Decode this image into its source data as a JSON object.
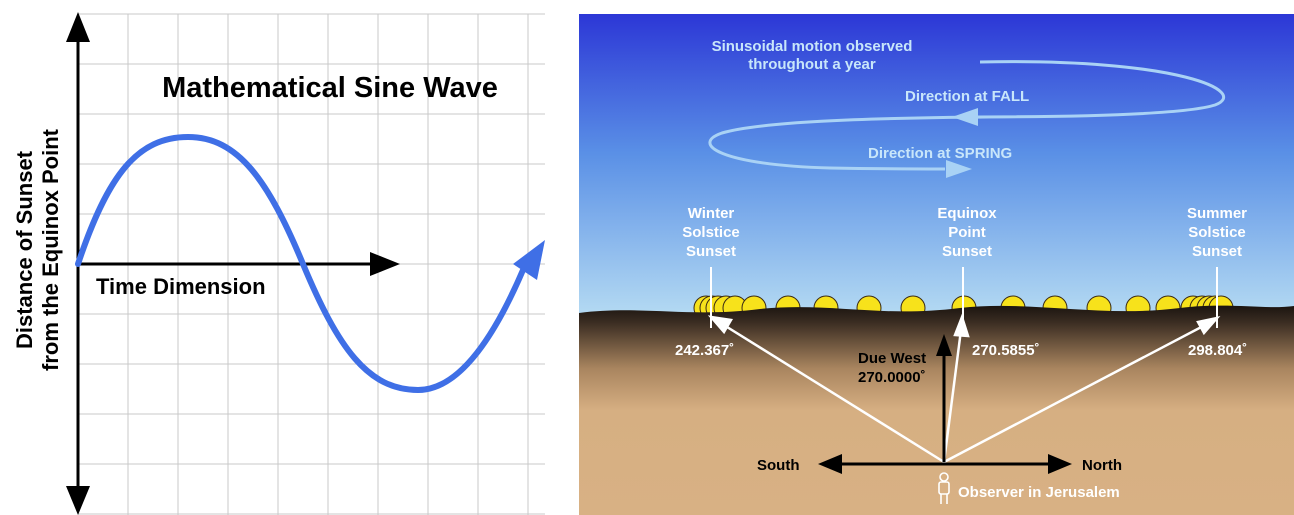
{
  "left_panel": {
    "title": "Mathematical Sine Wave",
    "x_axis_label": "Time Dimension",
    "y_axis_label_line1": "Distance of Sunset",
    "y_axis_label_line2": "from the Equinox Point",
    "wave_color": "#3f6fe6"
  },
  "right_panel": {
    "motion_caption_line1": "Sinusoidal motion observed",
    "motion_caption_line2": "throughout a year",
    "fall_label": "Direction at FALL",
    "spring_label": "Direction at SPRING",
    "winter_label": [
      "Winter",
      "Solstice",
      "Sunset"
    ],
    "equinox_label": [
      "Equinox",
      "Point",
      "Sunset"
    ],
    "summer_label": [
      "Summer",
      "Solstice",
      "Sunset"
    ],
    "winter_azimuth": "242.367˚",
    "equinox_azimuth": "270.5855˚",
    "summer_azimuth": "298.804˚",
    "due_west_line1": "Due West",
    "due_west_line2": "270.0000˚",
    "south_label": "South",
    "north_label": "North",
    "observer_label": "Observer in Jerusalem",
    "sky_top_color": "#2c37d6",
    "sky_bottom_color": "#b6dcf2",
    "sun_color": "#f7e21b",
    "ground_color": "#d8b184"
  }
}
